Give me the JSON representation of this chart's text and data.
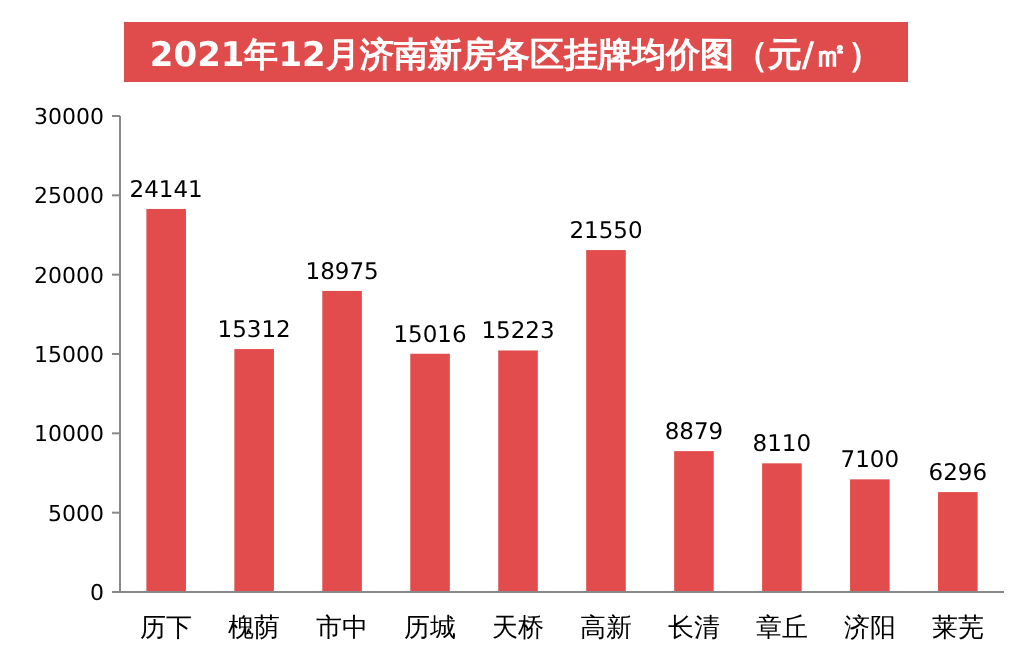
{
  "chart_data": {
    "type": "bar",
    "title": "2021年12月济南新房各区挂牌均价图（元/㎡）",
    "categories": [
      "历下",
      "槐荫",
      "市中",
      "历城",
      "天桥",
      "高新",
      "长清",
      "章丘",
      "济阳",
      "莱芜"
    ],
    "values": [
      24141,
      15312,
      18975,
      15016,
      15223,
      21550,
      8879,
      8110,
      7100,
      6296
    ],
    "color": "#e34c4c",
    "ylim": [
      0,
      30000
    ],
    "yticks": [
      0,
      5000,
      10000,
      15000,
      20000,
      25000,
      30000
    ],
    "data_labels": true
  }
}
